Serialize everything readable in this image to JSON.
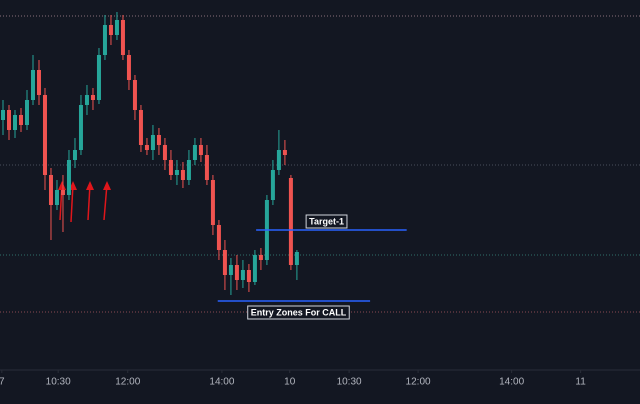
{
  "chart_data": {
    "type": "candlestick",
    "open": [
      280,
      290,
      270,
      285,
      275,
      300,
      330,
      305,
      225,
      195,
      210,
      205,
      240,
      250,
      295,
      305,
      300,
      345,
      375,
      365,
      380,
      345,
      320,
      290,
      255,
      250,
      265,
      255,
      240,
      225,
      230,
      220,
      240,
      255,
      245,
      220,
      175,
      150,
      125,
      135,
      120,
      130,
      118,
      145,
      140,
      200,
      230,
      250,
      222,
      135
    ],
    "high": [
      300,
      295,
      290,
      292,
      310,
      345,
      340,
      312,
      232,
      220,
      225,
      250,
      262,
      305,
      315,
      312,
      352,
      385,
      385,
      388,
      385,
      350,
      325,
      295,
      262,
      275,
      272,
      262,
      250,
      240,
      238,
      250,
      262,
      262,
      255,
      225,
      180,
      160,
      142,
      145,
      140,
      136,
      150,
      152,
      205,
      240,
      270,
      260,
      225,
      150
    ],
    "low": [
      265,
      260,
      262,
      268,
      270,
      295,
      295,
      210,
      160,
      190,
      168,
      200,
      232,
      245,
      285,
      290,
      296,
      340,
      355,
      360,
      340,
      310,
      280,
      248,
      245,
      240,
      245,
      230,
      220,
      215,
      212,
      215,
      235,
      238,
      215,
      165,
      140,
      110,
      105,
      110,
      112,
      108,
      115,
      130,
      135,
      195,
      225,
      235,
      130,
      120
    ],
    "close": [
      290,
      270,
      285,
      275,
      300,
      330,
      305,
      225,
      195,
      210,
      205,
      240,
      250,
      295,
      305,
      300,
      345,
      375,
      365,
      380,
      345,
      320,
      290,
      255,
      250,
      265,
      255,
      240,
      225,
      230,
      220,
      240,
      255,
      245,
      220,
      175,
      150,
      125,
      135,
      120,
      130,
      118,
      145,
      140,
      200,
      230,
      250,
      245,
      135,
      148
    ],
    "up_color": "#26a69a",
    "down_color": "#ef5350",
    "xlim": [
      -0.5,
      106.2
    ],
    "xticks": [
      {
        "value": -0.2,
        "label": "7"
      },
      {
        "value": 9.2,
        "label": "10:30"
      },
      {
        "value": 20.8,
        "label": "12:00"
      },
      {
        "value": 36.5,
        "label": "14:00"
      },
      {
        "value": 47.8,
        "label": "10"
      },
      {
        "value": 57.7,
        "label": "10:30"
      },
      {
        "value": 69.2,
        "label": "12:00"
      },
      {
        "value": 84.8,
        "label": "14:00"
      },
      {
        "value": 96.3,
        "label": "11"
      }
    ],
    "ylim": [
      30,
      400
    ],
    "levels": [
      {
        "value": 384,
        "color": "#8a6f7a"
      },
      {
        "value": 235,
        "color": "#4a4f5c"
      },
      {
        "value": 145,
        "color": "#2f6f6a"
      },
      {
        "value": 88,
        "color": "#8a4a52"
      }
    ],
    "annotations": [
      {
        "text": "Target-1",
        "value": 170,
        "start": 42.2,
        "end": 67.3,
        "color": "#2962ff"
      },
      {
        "text": "Entry Zones For CALL",
        "value": 99,
        "start": 35.8,
        "end": 61.2,
        "color": "#2962ff"
      }
    ]
  }
}
